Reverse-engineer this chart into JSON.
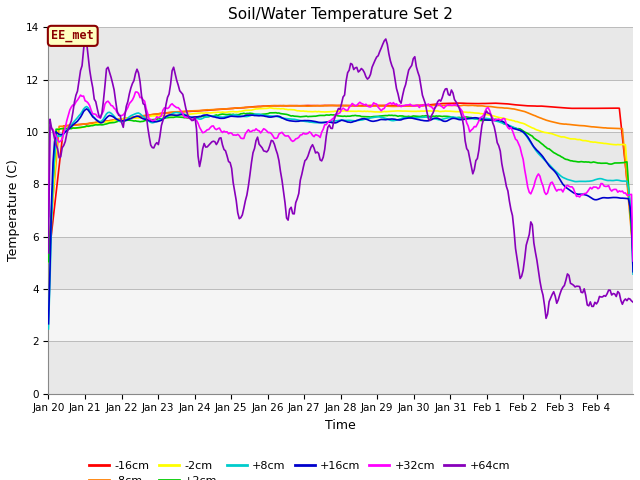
{
  "title": "Soil/Water Temperature Set 2",
  "xlabel": "Time",
  "ylabel": "Temperature (C)",
  "ylim": [
    0,
    14
  ],
  "yticks": [
    0,
    2,
    4,
    6,
    8,
    10,
    12,
    14
  ],
  "annotation": "EE_met",
  "annotation_color": "#8B0000",
  "annotation_bg": "#FFFFC0",
  "x_labels": [
    "Jan 20",
    "Jan 21",
    "Jan 22",
    "Jan 23",
    "Jan 24",
    "Jan 25",
    "Jan 26",
    "Jan 27",
    "Jan 28",
    "Jan 29",
    "Jan 30",
    "Jan 31",
    "Feb 1",
    "Feb 2",
    "Feb 3",
    "Feb 4"
  ],
  "series": {
    "-16cm": {
      "color": "#FF0000",
      "lw": 1.2
    },
    "-8cm": {
      "color": "#FF8000",
      "lw": 1.2
    },
    "-2cm": {
      "color": "#FFFF00",
      "lw": 1.2
    },
    "+2cm": {
      "color": "#00CC00",
      "lw": 1.2
    },
    "+8cm": {
      "color": "#00CCCC",
      "lw": 1.2
    },
    "+16cm": {
      "color": "#0000CC",
      "lw": 1.2
    },
    "+32cm": {
      "color": "#FF00FF",
      "lw": 1.2
    },
    "+64cm": {
      "color": "#8800BB",
      "lw": 1.2
    }
  },
  "bg_color": "#f0f0f0",
  "plot_bg": "#ffffff",
  "grid_color": "#cccccc",
  "band_color": "#e0e0e0",
  "figsize": [
    6.4,
    4.8
  ],
  "dpi": 100
}
